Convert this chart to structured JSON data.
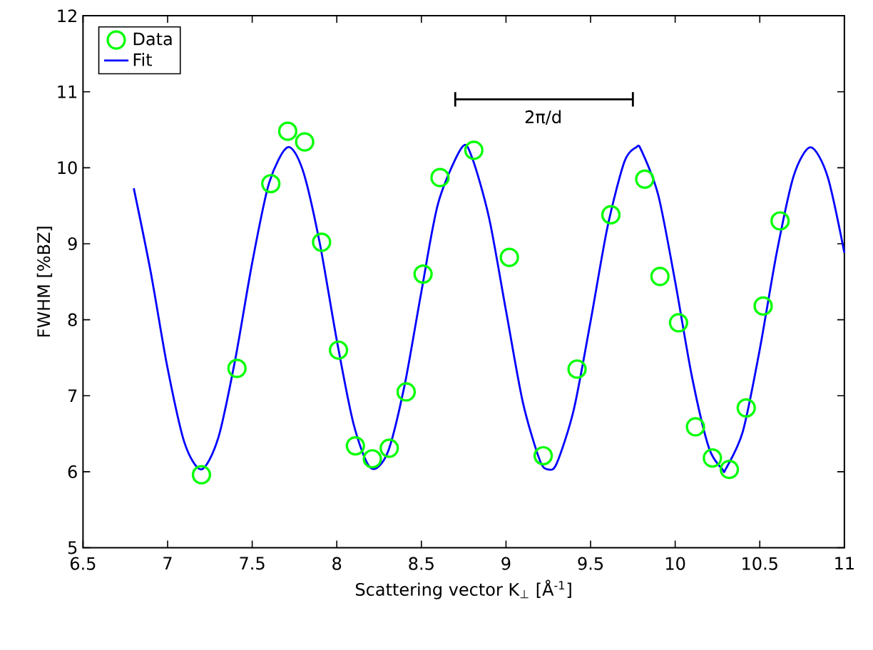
{
  "chart_data": {
    "type": "scatter",
    "xlabel": "Scattering vector K$_{⊥}$ [Å$^{-1}$]",
    "ylabel": "FWHM [%BZ]",
    "xlim": [
      6.5,
      11
    ],
    "xticks": [
      6.5,
      7,
      7.5,
      8,
      8.5,
      9,
      9.5,
      10,
      10.5,
      11
    ],
    "ylim": [
      5,
      12
    ],
    "yticks": [
      5,
      6,
      7,
      8,
      9,
      10,
      11,
      12
    ],
    "legend": "top left",
    "grid": false,
    "annotations": [
      "2π/d"
    ],
    "series": [
      {
        "name": "Data",
        "marker": "circle",
        "color": "#00ff00",
        "x": [
          7.2,
          7.41,
          7.61,
          7.71,
          7.81,
          7.91,
          8.01,
          8.11,
          8.21,
          8.31,
          8.41,
          8.51,
          8.61,
          8.81,
          9.02,
          9.22,
          9.42,
          9.62,
          9.82,
          9.91,
          10.02,
          10.12,
          10.22,
          10.32,
          10.42,
          10.52,
          10.62
        ],
        "values": [
          5.96,
          7.36,
          9.79,
          10.48,
          10.34,
          9.02,
          7.6,
          6.34,
          6.17,
          6.31,
          7.05,
          8.6,
          9.87,
          10.23,
          8.82,
          6.21,
          7.35,
          9.38,
          9.85,
          8.57,
          7.96,
          6.59,
          6.18,
          6.03,
          6.84,
          8.18,
          9.3
        ]
      },
      {
        "name": "Fit",
        "type": "line",
        "marker": "none",
        "line_style": "solid",
        "color": "#0000ff",
        "x": [
          6.8,
          6.9,
          7.0,
          7.1,
          7.2,
          7.3,
          7.4,
          7.5,
          7.6,
          7.71,
          7.8,
          7.9,
          8.0,
          8.1,
          8.2,
          8.3,
          8.4,
          8.5,
          8.6,
          8.74,
          8.8,
          8.9,
          9.0,
          9.1,
          9.2,
          9.25,
          9.3,
          9.4,
          9.5,
          9.6,
          9.7,
          9.77,
          9.8,
          9.9,
          10.0,
          10.1,
          10.2,
          10.28,
          10.3,
          10.4,
          10.5,
          10.6,
          10.7,
          10.8,
          10.9,
          11.0
        ],
        "values": [
          9.73,
          8.63,
          7.36,
          6.38,
          6.03,
          6.45,
          7.48,
          8.75,
          9.8,
          10.27,
          9.96,
          9.0,
          7.73,
          6.62,
          6.05,
          6.25,
          7.13,
          8.37,
          9.54,
          10.27,
          10.13,
          9.34,
          8.12,
          6.91,
          6.15,
          6.03,
          6.11,
          6.81,
          7.98,
          9.22,
          10.08,
          10.27,
          10.23,
          9.64,
          8.5,
          7.24,
          6.31,
          6.03,
          6.04,
          6.53,
          7.61,
          8.88,
          9.89,
          10.27,
          9.89,
          8.88
        ]
      }
    ]
  }
}
